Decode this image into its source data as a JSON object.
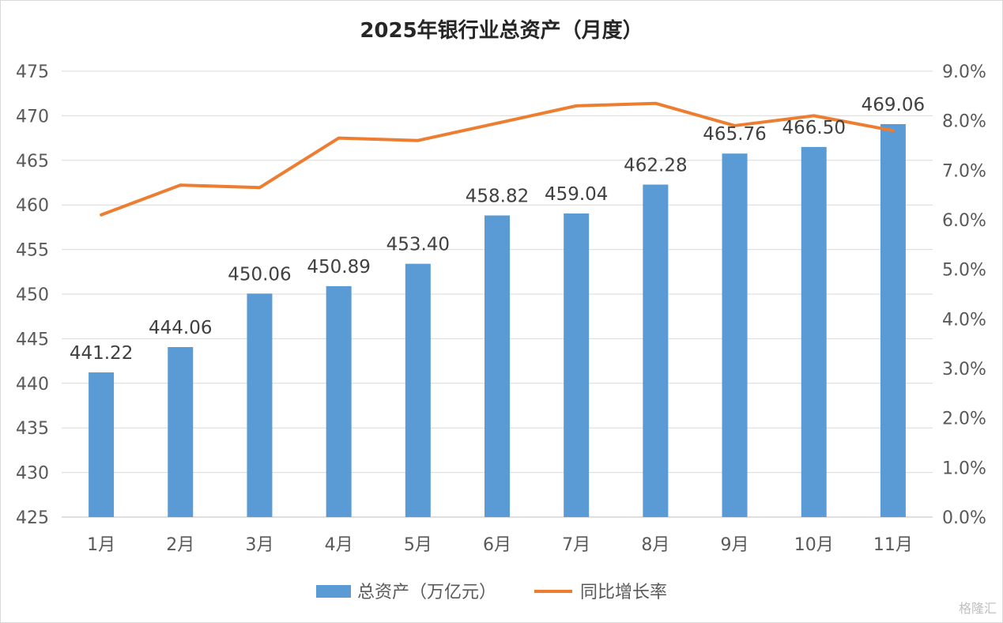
{
  "chart_data": {
    "type": "bar+line",
    "title": "2025年银行业总资产（月度）",
    "categories": [
      "1月",
      "2月",
      "3月",
      "4月",
      "5月",
      "6月",
      "7月",
      "8月",
      "9月",
      "10月",
      "11月"
    ],
    "series": [
      {
        "name": "总资产（万亿元）",
        "type": "bar",
        "axis": "left",
        "color": "#5B9BD5",
        "values": [
          441.22,
          444.06,
          450.06,
          450.89,
          453.4,
          458.82,
          459.04,
          462.28,
          465.76,
          466.5,
          469.06
        ],
        "labels": [
          "441.22",
          "444.06",
          "450.06",
          "450.89",
          "453.40",
          "458.82",
          "459.04",
          "462.28",
          "465.76",
          "466.50",
          "469.06"
        ]
      },
      {
        "name": "同比增长率",
        "type": "line",
        "axis": "right",
        "color": "#ED7D31",
        "values": [
          6.1,
          6.7,
          6.65,
          7.65,
          7.6,
          7.95,
          8.3,
          8.35,
          7.9,
          8.1,
          7.8
        ]
      }
    ],
    "y_left": {
      "min": 425,
      "max": 475,
      "step": 5,
      "ticks": [
        "425",
        "430",
        "435",
        "440",
        "445",
        "450",
        "455",
        "460",
        "465",
        "470",
        "475"
      ]
    },
    "y_right": {
      "min": 0,
      "max": 9,
      "step": 1,
      "ticks": [
        "0.0%",
        "1.0%",
        "2.0%",
        "3.0%",
        "4.0%",
        "5.0%",
        "6.0%",
        "7.0%",
        "8.0%",
        "9.0%"
      ]
    },
    "grid": true,
    "legend": "bottom"
  },
  "watermark": "格隆汇"
}
